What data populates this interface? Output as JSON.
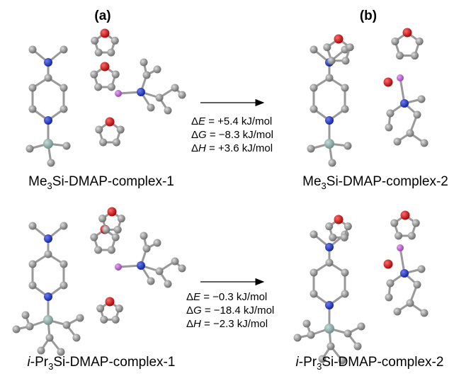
{
  "panels": [
    "(a)",
    "(b)"
  ],
  "rows": [
    {
      "left_label": {
        "prefix": "Me",
        "sub": "3",
        "suffix": "Si-DMAP-complex-1"
      },
      "right_label": {
        "prefix": "Me",
        "sub": "3",
        "suffix": "Si-DMAP-complex-2"
      },
      "energies": [
        [
          "Δ",
          "E",
          " = +5.4 kJ/mol"
        ],
        [
          "Δ",
          "G",
          " = −8.3 kJ/mol"
        ],
        [
          "Δ",
          "H",
          " = +3.6 kJ/mol"
        ]
      ]
    },
    {
      "left_label": {
        "italic": "i",
        "prefix": "-Pr",
        "sub": "3",
        "suffix": "Si-DMAP-complex-1"
      },
      "right_label": {
        "italic": "i",
        "prefix": "-Pr",
        "sub": "3",
        "suffix": "Si-DMAP-complex-2"
      },
      "energies": [
        [
          "Δ",
          "E",
          " = −0.3 kJ/mol"
        ],
        [
          "Δ",
          "G",
          " = −18.4 kJ/mol"
        ],
        [
          "Δ",
          "H",
          " = −2.3 kJ/mol"
        ]
      ]
    }
  ]
}
